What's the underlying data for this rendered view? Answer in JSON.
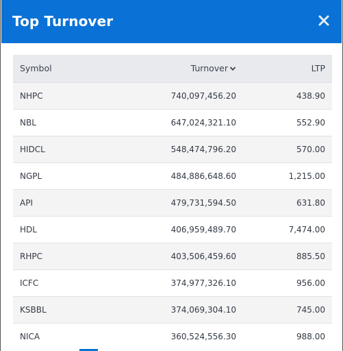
{
  "dialog": {
    "title": "Top Turnover",
    "close_symbol": "×"
  },
  "table": {
    "headers": {
      "symbol": "Symbol",
      "turnover": "Turnover",
      "ltp": "LTP"
    },
    "sort": {
      "column": "turnover",
      "direction": "desc",
      "icon": "chevron-down-icon"
    },
    "rows": [
      {
        "symbol": "NHPC",
        "turnover": "740,097,456.20",
        "ltp": "438.90"
      },
      {
        "symbol": "NBL",
        "turnover": "647,024,321.10",
        "ltp": "552.90"
      },
      {
        "symbol": "HIDCL",
        "turnover": "548,474,796.20",
        "ltp": "570.00"
      },
      {
        "symbol": "NGPL",
        "turnover": "484,886,648.60",
        "ltp": "1,215.00"
      },
      {
        "symbol": "API",
        "turnover": "479,731,594.50",
        "ltp": "631.80"
      },
      {
        "symbol": "HDL",
        "turnover": "406,959,489.70",
        "ltp": "7,474.00"
      },
      {
        "symbol": "RHPC",
        "turnover": "403,506,459.60",
        "ltp": "885.50"
      },
      {
        "symbol": "ICFC",
        "turnover": "374,977,326.10",
        "ltp": "956.00"
      },
      {
        "symbol": "KSBBL",
        "turnover": "374,069,304.10",
        "ltp": "745.00"
      },
      {
        "symbol": "NICA",
        "turnover": "360,524,556.30",
        "ltp": "988.00"
      }
    ]
  },
  "colors": {
    "header_bg": "#0a72d6",
    "table_header_bg": "#e8eaed",
    "row_alt_bg": "#f4f4f5"
  }
}
